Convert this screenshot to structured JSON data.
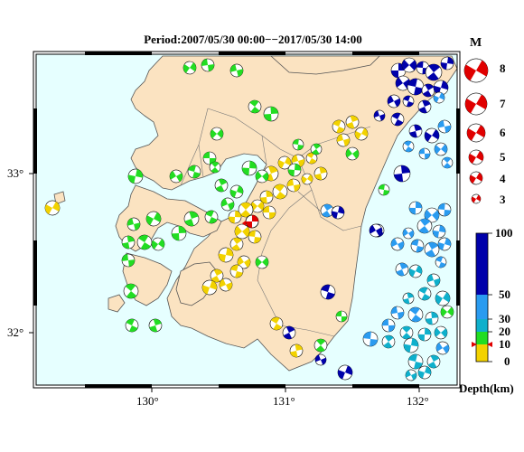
{
  "title": "Period:2007/05/30 00:00−−2017/05/30 14:00",
  "map": {
    "lon_labels": [
      "130°",
      "131°",
      "132°"
    ],
    "lat_labels": [
      "33°",
      "32°"
    ],
    "colors": {
      "sea": "#e6ffff",
      "land": "#fbe3c1",
      "coast": "#555555"
    }
  },
  "legend_magnitude": {
    "header": "M",
    "entries": [
      "8",
      "7",
      "6",
      "5",
      "4",
      "3"
    ]
  },
  "legend_depth": {
    "labels": [
      "100",
      "50",
      "30",
      "20",
      "10",
      "0"
    ],
    "caption": "Depth(km)",
    "colors": {
      "0-10": "#f2d200",
      "10-20": "#22dd22",
      "20-30": "#0fb0cc",
      "30-50": "#2a9bf0",
      "50-100": "#0000aa"
    }
  },
  "epicenter_marker": {
    "color": "#e00000"
  }
}
